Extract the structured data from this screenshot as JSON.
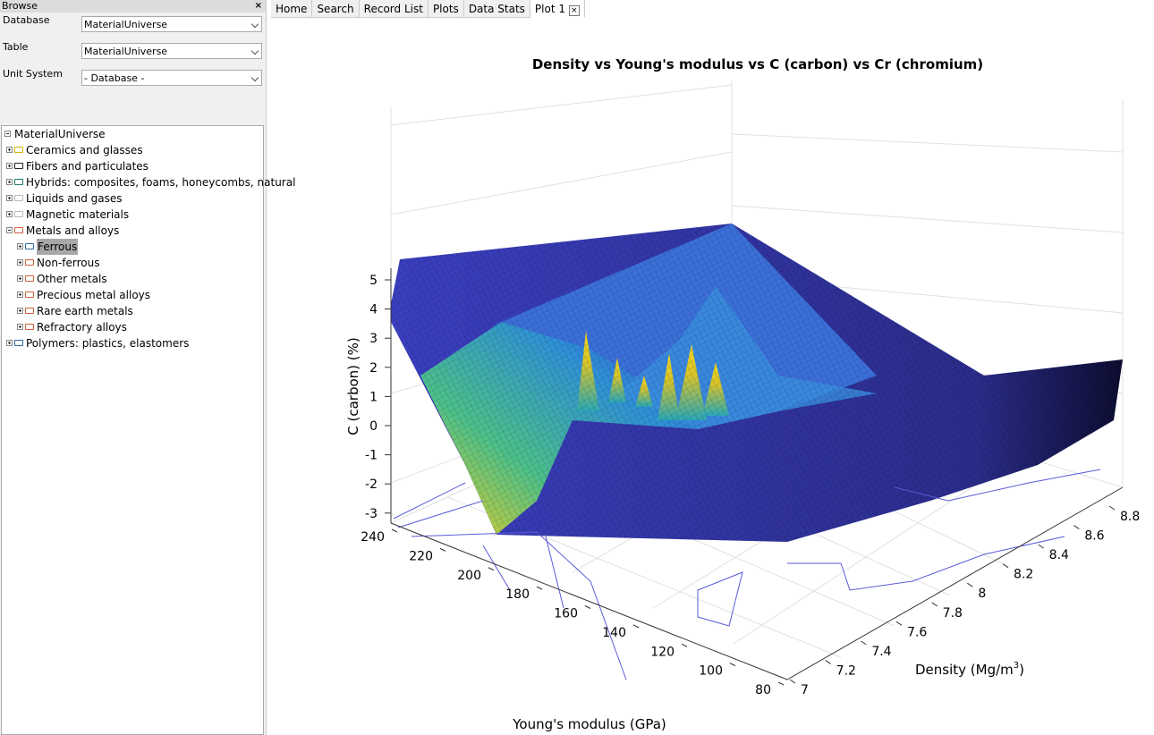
{
  "sidebar": {
    "title": "Browse",
    "fields": [
      {
        "label": "Database",
        "value": "MaterialUniverse"
      },
      {
        "label": "Table",
        "value": "MaterialUniverse"
      },
      {
        "label": "Unit System",
        "value": "- Database -"
      }
    ],
    "tree": {
      "root": "MaterialUniverse",
      "items": [
        {
          "label": "Ceramics and glasses",
          "color": "#d4b400"
        },
        {
          "label": "Fibers and particulates",
          "color": "#222222"
        },
        {
          "label": "Hybrids: composites, foams, honeycombs, natural",
          "color": "#1a7a6a"
        },
        {
          "label": "Liquids and gases",
          "color": "#bbbbbb"
        },
        {
          "label": "Magnetic materials",
          "color": "#bbbbbb"
        },
        {
          "label": "Metals and alloys",
          "color": "#d0603a",
          "children": [
            {
              "label": "Ferrous",
              "color": "#2a6aa0",
              "selected": true
            },
            {
              "label": "Non-ferrous",
              "color": "#d0603a"
            },
            {
              "label": "Other metals",
              "color": "#d0603a"
            },
            {
              "label": "Precious metal alloys",
              "color": "#d0603a"
            },
            {
              "label": "Rare earth metals",
              "color": "#d0603a"
            },
            {
              "label": "Refractory alloys",
              "color": "#d0603a"
            }
          ]
        },
        {
          "label": "Polymers: plastics, elastomers",
          "color": "#2a6aa0"
        }
      ]
    }
  },
  "tabs": [
    "Home",
    "Search",
    "Record List",
    "Plots",
    "Data Stats",
    "Plot 1"
  ],
  "plot": {
    "title": "Density vs Young's modulus vs C (carbon) vs Cr (chromium)",
    "z_label": "C (carbon) (%)",
    "modulus_label": "Young's modulus (GPa)",
    "density_label": "Density (Mg/m",
    "density_label_sup": "3",
    "density_label_end": ")",
    "z_ticks": [
      5,
      4,
      3,
      2,
      1,
      0,
      -1,
      -2,
      -3
    ],
    "modulus_ticks": [
      240,
      220,
      200,
      180,
      160,
      140,
      120,
      100,
      80
    ],
    "density_ticks": [
      7,
      7.2,
      7.4,
      7.6,
      7.8,
      8,
      8.2,
      8.4,
      8.6,
      8.8
    ]
  }
}
